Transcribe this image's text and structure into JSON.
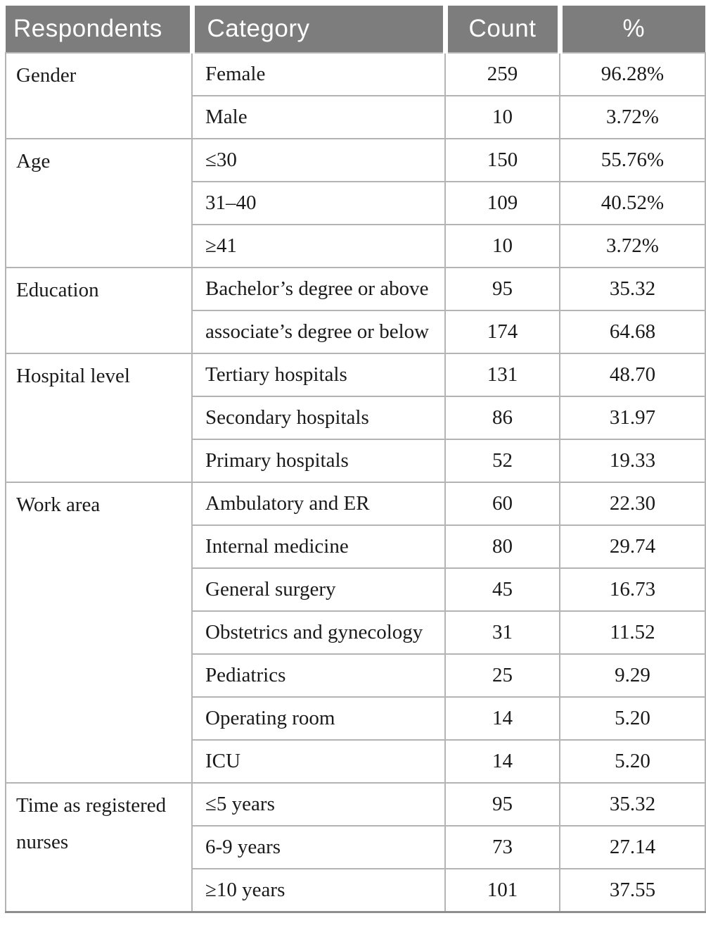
{
  "table": {
    "columns": [
      "Respondents",
      "Category",
      "Count",
      "%"
    ],
    "groups": [
      {
        "respondent": "Gender",
        "rows": [
          [
            "Female",
            "259",
            "96.28%"
          ],
          [
            "Male",
            "10",
            "3.72%"
          ]
        ]
      },
      {
        "respondent": "Age",
        "rows": [
          [
            "≤30",
            "150",
            "55.76%"
          ],
          [
            "31–40",
            "109",
            "40.52%"
          ],
          [
            "≥41",
            "10",
            "3.72%"
          ]
        ]
      },
      {
        "respondent": "Education",
        "rows": [
          [
            "Bachelor’s degree or above",
            "95",
            "35.32"
          ],
          [
            "associate’s degree or below",
            "174",
            "64.68"
          ]
        ]
      },
      {
        "respondent": "Hospital level",
        "rows": [
          [
            "Tertiary hospitals",
            "131",
            "48.70"
          ],
          [
            "Secondary hospitals",
            "86",
            "31.97"
          ],
          [
            "Primary hospitals",
            "52",
            "19.33"
          ]
        ]
      },
      {
        "respondent": "Work area",
        "rows": [
          [
            "Ambulatory and ER",
            "60",
            "22.30"
          ],
          [
            "Internal medicine",
            "80",
            "29.74"
          ],
          [
            "General surgery",
            "45",
            "16.73"
          ],
          [
            "Obstetrics and gynecology",
            "31",
            "11.52"
          ],
          [
            "Pediatrics",
            "25",
            "9.29"
          ],
          [
            "Operating room",
            "14",
            "5.20"
          ],
          [
            "ICU",
            "14",
            "5.20"
          ]
        ]
      },
      {
        "respondent": "Time as registered nurses",
        "rows": [
          [
            "≤5 years",
            "95",
            "35.32"
          ],
          [
            "6-9 years",
            "73",
            "27.14"
          ],
          [
            "≥10 years",
            "101",
            "37.55"
          ]
        ]
      }
    ],
    "colors": {
      "header_background": "#7d7d7d",
      "header_text": "#ffffff",
      "body_text": "#1a1a1a",
      "grid_line": "#b4b4b4",
      "bottom_border": "#8e8e8e"
    }
  }
}
